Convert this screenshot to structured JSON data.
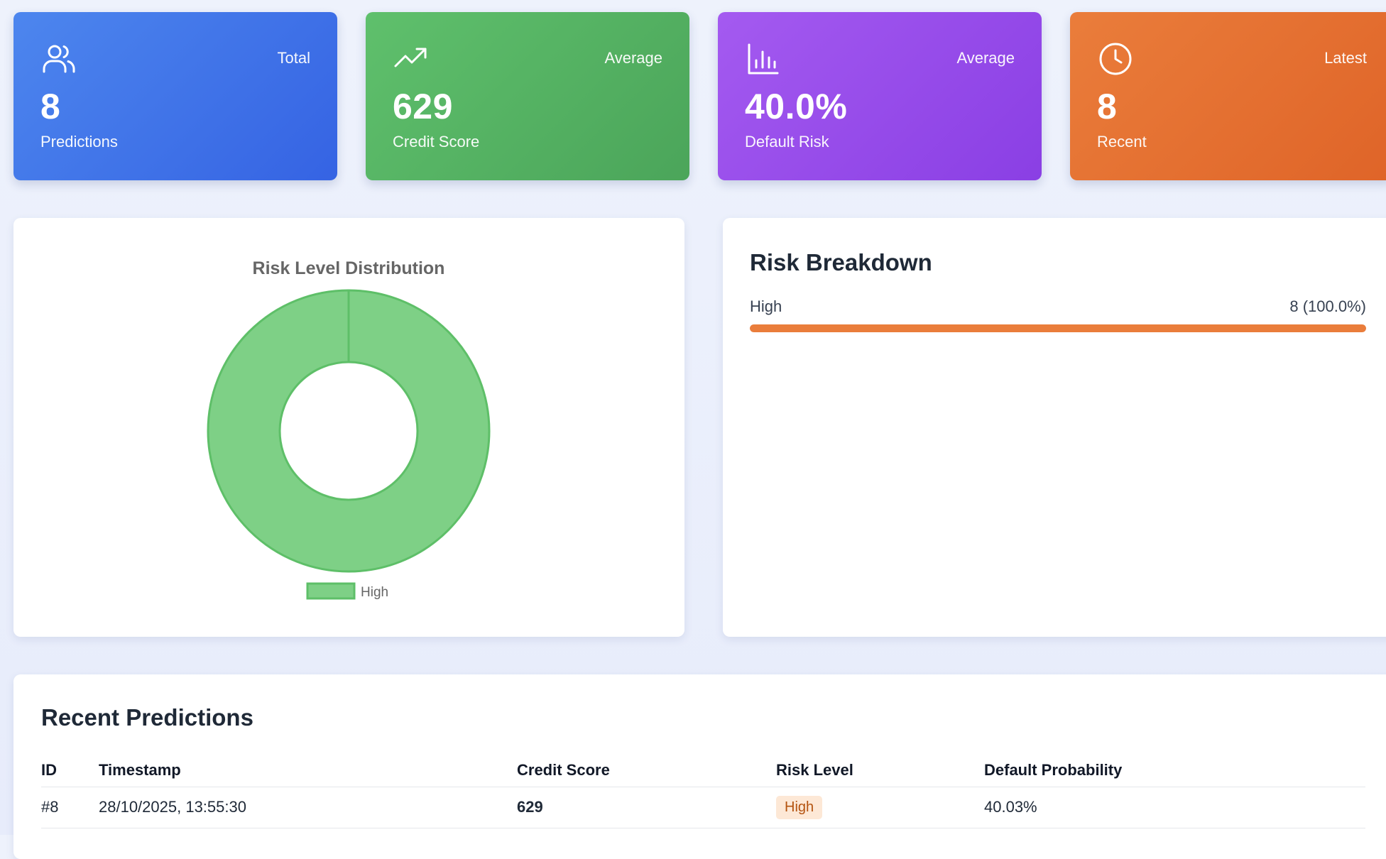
{
  "stats": [
    {
      "caption": "Total",
      "value": "8",
      "label": "Predictions",
      "icon": "users-icon"
    },
    {
      "caption": "Average",
      "value": "629",
      "label": "Credit Score",
      "icon": "trending-up-icon"
    },
    {
      "caption": "Average",
      "value": "40.0%",
      "label": "Default Risk",
      "icon": "bar-chart-icon"
    },
    {
      "caption": "Latest",
      "value": "8",
      "label": "Recent",
      "icon": "clock-icon"
    }
  ],
  "chart_data": {
    "type": "pie",
    "title": "Risk Level Distribution",
    "categories": [
      "High"
    ],
    "values": [
      8
    ],
    "colors": [
      "#7ed086"
    ],
    "legend": "bottom"
  },
  "breakdown": {
    "title": "Risk Breakdown",
    "items": [
      {
        "label": "High",
        "count_text": "8 (100.0%)",
        "fraction": 1.0,
        "color": "#ea7d3b"
      }
    ]
  },
  "recent": {
    "title": "Recent Predictions",
    "columns": [
      "ID",
      "Timestamp",
      "Credit Score",
      "Risk Level",
      "Default Probability"
    ],
    "rows": [
      {
        "id": "#8",
        "timestamp": "28/10/2025, 13:55:30",
        "credit_score": "629",
        "risk_level": "High",
        "default_probability": "40.03%"
      }
    ]
  }
}
